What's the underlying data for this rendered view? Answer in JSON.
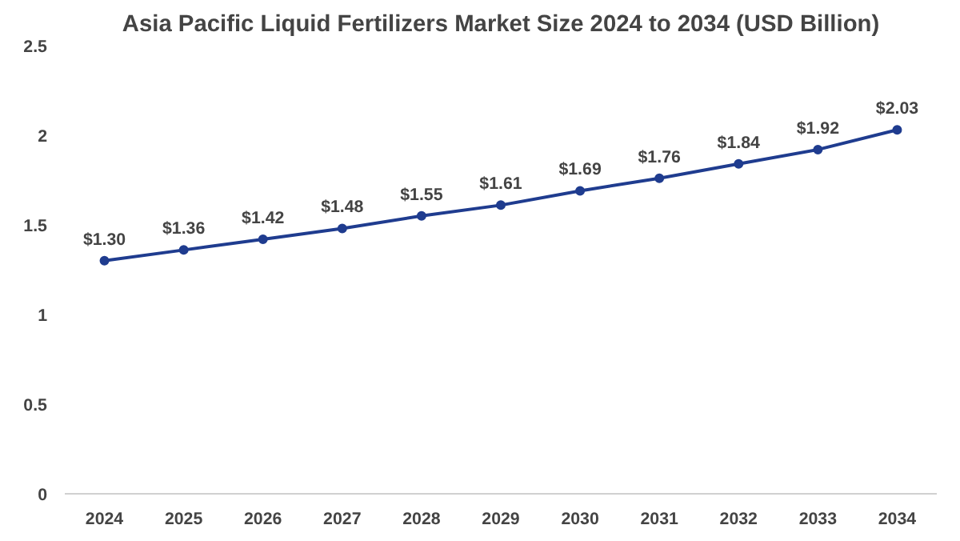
{
  "chart_data": {
    "type": "line",
    "title": "Asia Pacific Liquid Fertilizers Market Size 2024 to 2034 (USD Billion)",
    "categories": [
      "2024",
      "2025",
      "2026",
      "2027",
      "2028",
      "2029",
      "2030",
      "2031",
      "2032",
      "2033",
      "2034"
    ],
    "series": [
      {
        "color": "#1f3c8f",
        "values": [
          1.3,
          1.36,
          1.42,
          1.48,
          1.55,
          1.61,
          1.69,
          1.76,
          1.84,
          1.92,
          2.03
        ],
        "value_labels": [
          "$1.30",
          "$1.36",
          "$1.42",
          "$1.48",
          "$1.55",
          "$1.61",
          "$1.69",
          "$1.76",
          "$1.84",
          "$1.92",
          "$2.03"
        ]
      }
    ],
    "ylim": [
      0,
      2.5
    ],
    "yticks": [
      0,
      0.5,
      1,
      1.5,
      2,
      2.5
    ],
    "grid": false,
    "marker": "circle",
    "line_style": "solid"
  }
}
